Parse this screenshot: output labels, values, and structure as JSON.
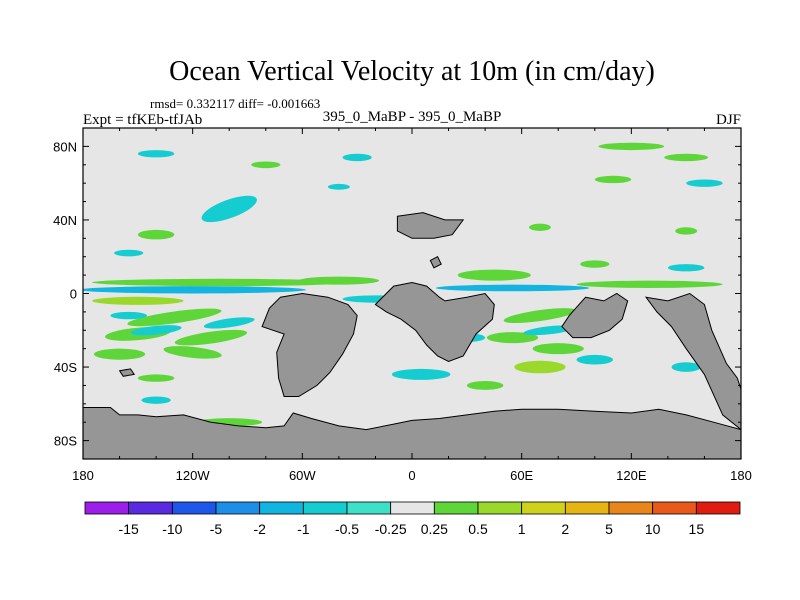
{
  "chart_data": {
    "type": "heatmap",
    "title": "Ocean Vertical Velocity at 10m (in cm/day)",
    "stats_line": "rmsd= 0.332117 diff= -0.001663",
    "left_label": "Expt = tfKEb-tfJAb",
    "center_label": "395_0_MaBP - 395_0_MaBP",
    "right_label": "DJF",
    "x_axis": {
      "range": [
        -180,
        180
      ],
      "ticks": [
        -180,
        -120,
        -60,
        0,
        60,
        120,
        180
      ],
      "tick_labels": [
        "180",
        "120W",
        "60W",
        "0",
        "60E",
        "120E",
        "180"
      ]
    },
    "y_axis": {
      "range": [
        -90,
        90
      ],
      "ticks": [
        80,
        40,
        0,
        -40,
        -80
      ],
      "tick_labels": [
        "80N",
        "40N",
        "0",
        "40S",
        "80S"
      ]
    },
    "colorbar": {
      "labels": [
        "-15",
        "-10",
        "-5",
        "-2",
        "-1",
        "-0.5",
        "-0.25",
        "0.25",
        "0.5",
        "1",
        "2",
        "5",
        "10",
        "15"
      ],
      "colors": [
        "#9b1fe8",
        "#5a2ae0",
        "#1f57e8",
        "#1e8fe6",
        "#12b4e0",
        "#15ccd0",
        "#3fe0c8",
        "#e6e6e6",
        "#5ed63a",
        "#9ad82c",
        "#cfd21c",
        "#e6b414",
        "#e8861c",
        "#e85a1c",
        "#e01c10"
      ]
    },
    "colors": {
      "background": "#e6e6e6",
      "land": "#969696",
      "upwelling": "#5ed63a",
      "upwelling_strong": "#9ad82c",
      "downwelling": "#15ccd0",
      "downwelling_strong": "#12b4e0"
    },
    "land_regions": [
      {
        "name": "antarctica",
        "poly": [
          [
            -180,
            -62
          ],
          [
            -165,
            -62
          ],
          [
            -160,
            -66
          ],
          [
            -150,
            -66
          ],
          [
            -140,
            -67
          ],
          [
            -125,
            -66
          ],
          [
            -110,
            -70
          ],
          [
            -95,
            -72
          ],
          [
            -80,
            -73
          ],
          [
            -70,
            -72
          ],
          [
            -65,
            -65
          ],
          [
            -55,
            -68
          ],
          [
            -40,
            -72
          ],
          [
            -25,
            -74
          ],
          [
            -10,
            -71
          ],
          [
            0,
            -69
          ],
          [
            15,
            -68
          ],
          [
            30,
            -66
          ],
          [
            45,
            -64
          ],
          [
            60,
            -63
          ],
          [
            80,
            -63
          ],
          [
            100,
            -64
          ],
          [
            120,
            -65
          ],
          [
            135,
            -63
          ],
          [
            150,
            -66
          ],
          [
            165,
            -70
          ],
          [
            180,
            -74
          ],
          [
            180,
            -90
          ],
          [
            -180,
            -90
          ]
        ]
      },
      {
        "name": "south-america",
        "poly": [
          [
            -82,
            -18
          ],
          [
            -78,
            -8
          ],
          [
            -72,
            -2
          ],
          [
            -60,
            0
          ],
          [
            -46,
            -2
          ],
          [
            -35,
            -6
          ],
          [
            -30,
            -12
          ],
          [
            -32,
            -22
          ],
          [
            -38,
            -33
          ],
          [
            -45,
            -43
          ],
          [
            -52,
            -50
          ],
          [
            -62,
            -56
          ],
          [
            -70,
            -56
          ],
          [
            -73,
            -46
          ],
          [
            -74,
            -32
          ],
          [
            -70,
            -22
          ]
        ]
      },
      {
        "name": "africa",
        "poly": [
          [
            -20,
            -6
          ],
          [
            -10,
            4
          ],
          [
            0,
            6
          ],
          [
            8,
            4
          ],
          [
            15,
            -2
          ],
          [
            18,
            -4
          ],
          [
            30,
            -2
          ],
          [
            40,
            0
          ],
          [
            45,
            -6
          ],
          [
            44,
            -14
          ],
          [
            35,
            -22
          ],
          [
            28,
            -34
          ],
          [
            20,
            -37
          ],
          [
            14,
            -34
          ],
          [
            8,
            -28
          ],
          [
            2,
            -20
          ],
          [
            -6,
            -14
          ],
          [
            -14,
            -10
          ]
        ]
      },
      {
        "name": "india-block",
        "poly": [
          [
            95,
            -2
          ],
          [
            105,
            -4
          ],
          [
            112,
            0
          ],
          [
            118,
            -4
          ],
          [
            115,
            -14
          ],
          [
            108,
            -20
          ],
          [
            98,
            -24
          ],
          [
            88,
            -24
          ],
          [
            82,
            -18
          ],
          [
            86,
            -12
          ]
        ]
      },
      {
        "name": "east-block",
        "poly": [
          [
            128,
            -2
          ],
          [
            140,
            -4
          ],
          [
            152,
            0
          ],
          [
            160,
            -6
          ],
          [
            164,
            -20
          ],
          [
            172,
            -38
          ],
          [
            178,
            -46
          ],
          [
            180,
            -52
          ],
          [
            180,
            -74
          ],
          [
            170,
            -66
          ],
          [
            160,
            -44
          ],
          [
            150,
            -30
          ],
          [
            142,
            -18
          ],
          [
            134,
            -10
          ]
        ]
      },
      {
        "name": "northern-island",
        "poly": [
          [
            -8,
            42
          ],
          [
            6,
            44
          ],
          [
            18,
            40
          ],
          [
            28,
            40
          ],
          [
            22,
            32
          ],
          [
            12,
            30
          ],
          [
            0,
            30
          ],
          [
            -8,
            34
          ]
        ]
      },
      {
        "name": "north-africa-bump",
        "poly": [
          [
            10,
            18
          ],
          [
            14,
            20
          ],
          [
            16,
            16
          ],
          [
            12,
            14
          ]
        ]
      },
      {
        "name": "pacific-islet",
        "poly": [
          [
            -160,
            -42
          ],
          [
            -154,
            -41
          ],
          [
            -152,
            -44
          ],
          [
            -158,
            -45
          ]
        ]
      }
    ],
    "velocity_features": [
      {
        "lon": -120,
        "lat": 2,
        "rx": 62,
        "ry": 2.0,
        "rot": 0,
        "v": -1
      },
      {
        "lon": 55,
        "lat": 3,
        "rx": 42,
        "ry": 1.8,
        "rot": 0,
        "v": -1
      },
      {
        "lon": -105,
        "lat": 6,
        "rx": 70,
        "ry": 2.0,
        "rot": 0,
        "v": 0.5
      },
      {
        "lon": -40,
        "lat": 7,
        "rx": 22,
        "ry": 2.2,
        "rot": 0,
        "v": 0.5
      },
      {
        "lon": 130,
        "lat": 5,
        "rx": 40,
        "ry": 2.0,
        "rot": 0,
        "v": 0.5
      },
      {
        "lon": 45,
        "lat": 10,
        "rx": 20,
        "ry": 3,
        "rot": 0,
        "v": 0.5
      },
      {
        "lon": -150,
        "lat": -4,
        "rx": 25,
        "ry": 2.2,
        "rot": 0,
        "v": 1
      },
      {
        "lon": -20,
        "lat": -3,
        "rx": 18,
        "ry": 2,
        "rot": 0,
        "v": -0.5
      },
      {
        "lon": -130,
        "lat": -13,
        "rx": 26,
        "ry": 3.2,
        "rot": -8,
        "v": 0.5
      },
      {
        "lon": -150,
        "lat": -22,
        "rx": 18,
        "ry": 3.4,
        "rot": -5,
        "v": 0.5
      },
      {
        "lon": -110,
        "lat": -24,
        "rx": 20,
        "ry": 3.2,
        "rot": -8,
        "v": 0.5
      },
      {
        "lon": -160,
        "lat": -33,
        "rx": 14,
        "ry": 3,
        "rot": 0,
        "v": 0.5
      },
      {
        "lon": -120,
        "lat": -32,
        "rx": 16,
        "ry": 3,
        "rot": 6,
        "v": 0.5
      },
      {
        "lon": 70,
        "lat": -12,
        "rx": 20,
        "ry": 3,
        "rot": -8,
        "v": 0.5
      },
      {
        "lon": 55,
        "lat": -24,
        "rx": 14,
        "ry": 3,
        "rot": 0,
        "v": 0.5
      },
      {
        "lon": 80,
        "lat": -30,
        "rx": 14,
        "ry": 3,
        "rot": 0,
        "v": 0.5
      },
      {
        "lon": 70,
        "lat": -40,
        "rx": 14,
        "ry": 3.4,
        "rot": 0,
        "v": 1
      },
      {
        "lon": -140,
        "lat": -20,
        "rx": 14,
        "ry": 2.4,
        "rot": -6,
        "v": -0.5
      },
      {
        "lon": -100,
        "lat": -16,
        "rx": 14,
        "ry": 2.4,
        "rot": -8,
        "v": -0.5
      },
      {
        "lon": -155,
        "lat": -12,
        "rx": 10,
        "ry": 2,
        "rot": 0,
        "v": -0.5
      },
      {
        "lon": 30,
        "lat": -24,
        "rx": 10,
        "ry": 2.4,
        "rot": 0,
        "v": -0.5
      },
      {
        "lon": 75,
        "lat": -20,
        "rx": 14,
        "ry": 2.2,
        "rot": -6,
        "v": -0.5
      },
      {
        "lon": 100,
        "lat": -36,
        "rx": 10,
        "ry": 2.6,
        "rot": 0,
        "v": -0.5
      },
      {
        "lon": 5,
        "lat": -44,
        "rx": 16,
        "ry": 3,
        "rot": 0,
        "v": -0.5
      },
      {
        "lon": -62,
        "lat": -45,
        "rx": 10,
        "ry": 2.6,
        "rot": 0,
        "v": -0.5
      },
      {
        "lon": -100,
        "lat": -70,
        "rx": 18,
        "ry": 2.2,
        "rot": 0,
        "v": 0.5
      },
      {
        "lon": -20,
        "lat": -76,
        "rx": 12,
        "ry": 2.6,
        "rot": 0,
        "v": 0.5
      },
      {
        "lon": -140,
        "lat": -58,
        "rx": 8,
        "ry": 2,
        "rot": 0,
        "v": -0.5
      },
      {
        "lon": -80,
        "lat": 70,
        "rx": 8,
        "ry": 1.8,
        "rot": 0,
        "v": 0.5
      },
      {
        "lon": 120,
        "lat": 80,
        "rx": 18,
        "ry": 2.0,
        "rot": 0,
        "v": 0.5
      },
      {
        "lon": 150,
        "lat": 74,
        "rx": 12,
        "ry": 2,
        "rot": 0,
        "v": 0.5
      },
      {
        "lon": -140,
        "lat": 76,
        "rx": 10,
        "ry": 2,
        "rot": 0,
        "v": -0.5
      },
      {
        "lon": -30,
        "lat": 74,
        "rx": 8,
        "ry": 2,
        "rot": 0,
        "v": -0.5
      },
      {
        "lon": 160,
        "lat": 60,
        "rx": 10,
        "ry": 2,
        "rot": 0,
        "v": -0.5
      },
      {
        "lon": 110,
        "lat": 62,
        "rx": 10,
        "ry": 2,
        "rot": 0,
        "v": 0.5
      },
      {
        "lon": -100,
        "lat": 46,
        "rx": 16,
        "ry": 5,
        "rot": -20,
        "v": -0.5
      },
      {
        "lon": -140,
        "lat": 32,
        "rx": 10,
        "ry": 2.6,
        "rot": 0,
        "v": 0.5
      },
      {
        "lon": 70,
        "lat": 36,
        "rx": 6,
        "ry": 2,
        "rot": 0,
        "v": 0.5
      },
      {
        "lon": 150,
        "lat": 34,
        "rx": 6,
        "ry": 2,
        "rot": 0,
        "v": 0.5
      },
      {
        "lon": -155,
        "lat": 22,
        "rx": 8,
        "ry": 1.8,
        "rot": 0,
        "v": -0.5
      },
      {
        "lon": -40,
        "lat": 58,
        "rx": 6,
        "ry": 1.6,
        "rot": 0,
        "v": -0.5
      },
      {
        "lon": 150,
        "lat": 14,
        "rx": 10,
        "ry": 2,
        "rot": 0,
        "v": -0.5
      },
      {
        "lon": 100,
        "lat": 16,
        "rx": 8,
        "ry": 2,
        "rot": 0,
        "v": 0.5
      },
      {
        "lon": -140,
        "lat": -46,
        "rx": 10,
        "ry": 2,
        "rot": 0,
        "v": 0.5
      },
      {
        "lon": 40,
        "lat": -50,
        "rx": 10,
        "ry": 2.4,
        "rot": 0,
        "v": 0.5
      },
      {
        "lon": 150,
        "lat": -40,
        "rx": 8,
        "ry": 2.6,
        "rot": 0,
        "v": -0.5
      }
    ]
  }
}
